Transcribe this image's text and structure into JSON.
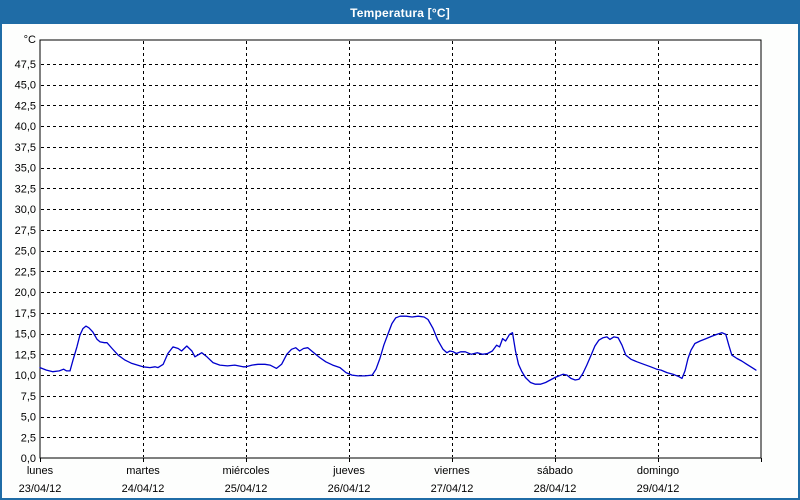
{
  "window": {
    "title": "Temperatura [°C]"
  },
  "colors": {
    "titlebar_bg": "#1F6CA6",
    "titlebar_text": "#FFFFFF",
    "frame_border": "#1F6CA6",
    "plot_border": "#000000",
    "grid": "#000000",
    "line": "#0000CD",
    "background": "#FDFEFD",
    "label_text": "#000000"
  },
  "chart_data": {
    "type": "line",
    "title": "Temperatura [°C]",
    "grid": "dashed",
    "legend_position": "none",
    "y_axis": {
      "unit_label": "°C",
      "min": 0,
      "max": 50,
      "tick_step": 2.5,
      "tick_labels": [
        "0,0",
        "2,5",
        "5,0",
        "7,5",
        "10,0",
        "12,5",
        "15,0",
        "17,5",
        "20,0",
        "22,5",
        "25,0",
        "27,5",
        "30,0",
        "32,5",
        "35,0",
        "37,5",
        "40,0",
        "42,5",
        "45,0",
        "47,5"
      ]
    },
    "x_axis": {
      "hours_total": 168,
      "days": [
        {
          "name": "lunes",
          "date": "23/04/12"
        },
        {
          "name": "martes",
          "date": "24/04/12"
        },
        {
          "name": "miércoles",
          "date": "25/04/12"
        },
        {
          "name": "jueves",
          "date": "26/04/12"
        },
        {
          "name": "viernes",
          "date": "27/04/12"
        },
        {
          "name": "sábado",
          "date": "28/04/12"
        },
        {
          "name": "domingo",
          "date": "29/04/12"
        }
      ]
    },
    "series": [
      {
        "name": "Temperatura",
        "color": "#0000CD",
        "points": [
          [
            0,
            10.9
          ],
          [
            1.5,
            10.6
          ],
          [
            3,
            10.4
          ],
          [
            4.5,
            10.5
          ],
          [
            5.5,
            10.7
          ],
          [
            6.2,
            10.5
          ],
          [
            7,
            10.5
          ],
          [
            7.7,
            11.8
          ],
          [
            8.6,
            13.4
          ],
          [
            9.3,
            14.8
          ],
          [
            10,
            15.6
          ],
          [
            10.7,
            15.9
          ],
          [
            11.4,
            15.7
          ],
          [
            12.3,
            15.2
          ],
          [
            13.3,
            14.3
          ],
          [
            14,
            14.0
          ],
          [
            15,
            13.9
          ],
          [
            15.6,
            13.9
          ],
          [
            16.8,
            13.2
          ],
          [
            18.2,
            12.4
          ],
          [
            19.8,
            11.8
          ],
          [
            21.4,
            11.4
          ],
          [
            23.3,
            11.1
          ],
          [
            24,
            11.0
          ],
          [
            25.6,
            10.9
          ],
          [
            26.8,
            11.0
          ],
          [
            27.5,
            10.9
          ],
          [
            28.7,
            11.3
          ],
          [
            29.8,
            12.6
          ],
          [
            31,
            13.4
          ],
          [
            32.2,
            13.2
          ],
          [
            33,
            12.9
          ],
          [
            34.2,
            13.5
          ],
          [
            35.4,
            12.9
          ],
          [
            36.1,
            12.2
          ],
          [
            37.7,
            12.7
          ],
          [
            38.9,
            12.2
          ],
          [
            40.3,
            11.5
          ],
          [
            41.9,
            11.2
          ],
          [
            43.7,
            11.1
          ],
          [
            45.4,
            11.2
          ],
          [
            47.3,
            11.0
          ],
          [
            48,
            11.0
          ],
          [
            49.4,
            11.2
          ],
          [
            50.8,
            11.3
          ],
          [
            52.4,
            11.3
          ],
          [
            53.6,
            11.2
          ],
          [
            55.1,
            10.8
          ],
          [
            56.3,
            11.3
          ],
          [
            57.5,
            12.5
          ],
          [
            58.6,
            13.1
          ],
          [
            59.6,
            13.3
          ],
          [
            60.5,
            12.9
          ],
          [
            61.4,
            13.2
          ],
          [
            62.4,
            13.3
          ],
          [
            64,
            12.6
          ],
          [
            65.2,
            12.1
          ],
          [
            66.6,
            11.6
          ],
          [
            68.2,
            11.2
          ],
          [
            69.9,
            10.9
          ],
          [
            71.3,
            10.3
          ],
          [
            72.7,
            10.0
          ],
          [
            74.1,
            9.9
          ],
          [
            75.7,
            9.9
          ],
          [
            77.4,
            10.0
          ],
          [
            78.3,
            10.7
          ],
          [
            79.2,
            12.0
          ],
          [
            80.1,
            13.6
          ],
          [
            81.1,
            15.0
          ],
          [
            82,
            16.2
          ],
          [
            82.9,
            16.9
          ],
          [
            83.9,
            17.1
          ],
          [
            85.3,
            17.1
          ],
          [
            86.7,
            17.0
          ],
          [
            88.1,
            17.1
          ],
          [
            89.5,
            17.0
          ],
          [
            90.4,
            16.7
          ],
          [
            91.6,
            15.6
          ],
          [
            92.7,
            14.2
          ],
          [
            93.9,
            13.1
          ],
          [
            94.8,
            12.7
          ],
          [
            95.5,
            12.9
          ],
          [
            96.3,
            12.8
          ],
          [
            97,
            12.6
          ],
          [
            98,
            12.8
          ],
          [
            99.1,
            12.8
          ],
          [
            100.5,
            12.5
          ],
          [
            101.9,
            12.7
          ],
          [
            103.1,
            12.5
          ],
          [
            104.3,
            12.6
          ],
          [
            105.4,
            12.9
          ],
          [
            106.4,
            13.6
          ],
          [
            107.1,
            13.4
          ],
          [
            107.8,
            14.4
          ],
          [
            108.5,
            14.1
          ],
          [
            109.4,
            14.9
          ],
          [
            110.1,
            15.1
          ],
          [
            110.8,
            12.9
          ],
          [
            111.5,
            11.3
          ],
          [
            112.2,
            10.5
          ],
          [
            113.1,
            9.7
          ],
          [
            114.3,
            9.1
          ],
          [
            115.4,
            8.9
          ],
          [
            116.6,
            8.9
          ],
          [
            117.8,
            9.1
          ],
          [
            118.9,
            9.4
          ],
          [
            120,
            9.7
          ],
          [
            120.9,
            9.9
          ],
          [
            121.9,
            10.1
          ],
          [
            122.8,
            10.0
          ],
          [
            123.7,
            9.6
          ],
          [
            124.7,
            9.4
          ],
          [
            125.6,
            9.5
          ],
          [
            126.5,
            10.2
          ],
          [
            127.4,
            11.2
          ],
          [
            128.4,
            12.4
          ],
          [
            129.3,
            13.5
          ],
          [
            130.2,
            14.2
          ],
          [
            131.2,
            14.5
          ],
          [
            132.1,
            14.6
          ],
          [
            132.8,
            14.3
          ],
          [
            133.7,
            14.6
          ],
          [
            134.7,
            14.5
          ],
          [
            135.6,
            13.6
          ],
          [
            136.5,
            12.4
          ],
          [
            137.7,
            11.9
          ],
          [
            139.1,
            11.6
          ],
          [
            140.7,
            11.3
          ],
          [
            142.3,
            11.0
          ],
          [
            143.7,
            10.7
          ],
          [
            144.7,
            10.6
          ],
          [
            146.1,
            10.3
          ],
          [
            147.5,
            10.1
          ],
          [
            148.9,
            9.8
          ],
          [
            149.6,
            9.6
          ],
          [
            150.3,
            10.5
          ],
          [
            151,
            12.0
          ],
          [
            151.7,
            13.0
          ],
          [
            152.6,
            13.8
          ],
          [
            153.8,
            14.1
          ],
          [
            155.2,
            14.4
          ],
          [
            156.6,
            14.7
          ],
          [
            157.7,
            14.9
          ],
          [
            158.9,
            15.1
          ],
          [
            159.8,
            14.9
          ],
          [
            160.5,
            13.6
          ],
          [
            161.2,
            12.4
          ],
          [
            162.4,
            12.0
          ],
          [
            163.5,
            11.7
          ],
          [
            164.7,
            11.3
          ],
          [
            165.9,
            10.9
          ],
          [
            166.8,
            10.6
          ]
        ]
      }
    ]
  }
}
